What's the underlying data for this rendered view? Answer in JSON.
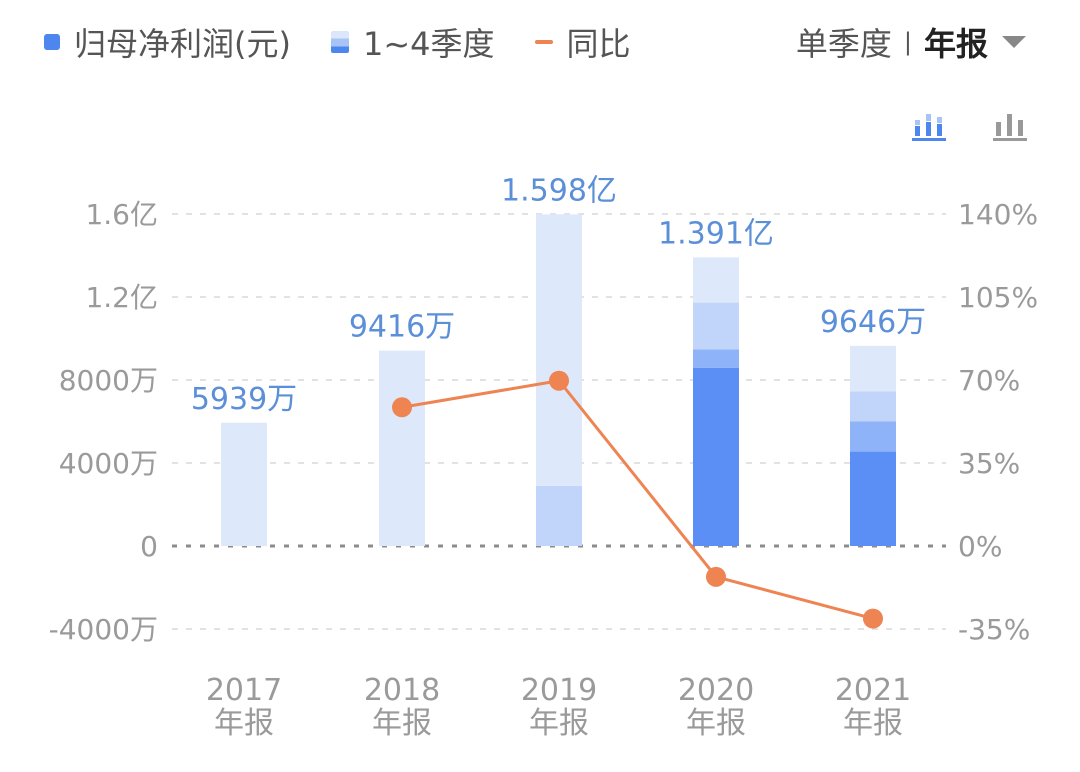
{
  "legend": {
    "items": [
      {
        "label": "归母净利润(元)",
        "color": "#4e86f0",
        "icon": "solid-square"
      },
      {
        "label": "1~4季度",
        "color": "#a8c4f6",
        "icon": "stacked-square"
      },
      {
        "label": "同比",
        "color": "#ee8452",
        "icon": "line-dash"
      }
    ]
  },
  "period_switch": {
    "option_quarter": "单季度",
    "separator": "|",
    "option_annual": "年报",
    "active": "年报"
  },
  "view_buttons": [
    {
      "icon": "stacked-bar-chart-icon",
      "color": "#4e86f0",
      "active": true
    },
    {
      "icon": "bar-chart-icon",
      "color": "#999999",
      "active": false
    }
  ],
  "chart_data": {
    "type": "bar",
    "categories": [
      "2017 年报",
      "2018 年报",
      "2019 年报",
      "2020 年报",
      "2021 年报"
    ],
    "x_tick_years": [
      "2017",
      "2018",
      "2019",
      "2020",
      "2021"
    ],
    "x_tick_suffix": "年报",
    "left_axis": {
      "ticks": [
        "1.6亿",
        "1.2亿",
        "8000万",
        "4000万",
        "0",
        "-4000万"
      ],
      "tick_values": [
        16000,
        12000,
        8000,
        4000,
        0,
        -4000
      ],
      "unit": "万",
      "ylim": [
        -4000,
        16000
      ]
    },
    "right_axis": {
      "ticks": [
        "140%",
        "105%",
        "70%",
        "35%",
        "0%",
        "-35%"
      ],
      "tick_values": [
        140,
        105,
        70,
        35,
        0,
        -35
      ],
      "ylim": [
        -35,
        140
      ]
    },
    "series": [
      {
        "name": "1~4季度",
        "kind": "stacked-bar",
        "segments_wan": [
          [
            5939
          ],
          [
            9416
          ],
          [
            2900,
            13080
          ],
          [
            8580,
            900,
            2250,
            2180
          ],
          [
            4550,
            1450,
            1450,
            2196
          ]
        ],
        "colors": [
          "#5b8ff6",
          "#8eb3f8",
          "#c1d4fa",
          "#dde8fb"
        ]
      },
      {
        "name": "归母净利润(元)",
        "kind": "total",
        "values_wan": [
          5939,
          9416,
          15980,
          13910,
          9646
        ]
      },
      {
        "name": "同比",
        "kind": "line",
        "values_pct": [
          null,
          58.5,
          69.7,
          -13,
          -30.6
        ],
        "color": "#ee8452"
      }
    ],
    "data_labels": [
      "5939万",
      "9416万",
      "1.598亿",
      "1.391亿",
      "9646万"
    ],
    "grid": true,
    "legend_position": "top-left"
  }
}
